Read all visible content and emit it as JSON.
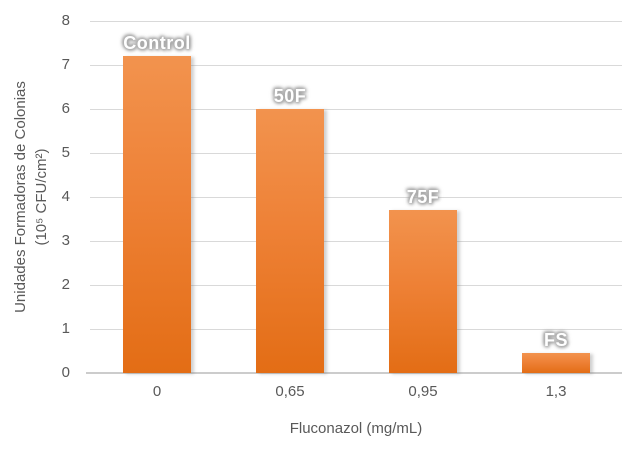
{
  "chart_data": {
    "type": "bar",
    "title": "",
    "categories": [
      "0",
      "0,65",
      "0,95",
      "1,3"
    ],
    "values": [
      7.2,
      6,
      3.7,
      0.45
    ],
    "bar_labels": [
      "Control",
      "50F",
      "75F",
      "FS"
    ],
    "xlabel": "Fluconazol (mg/mL)",
    "ylabel_lines": [
      "Unidades Formadoras de Colonias",
      "(10⁵ CFU/cm²)"
    ],
    "ylim": [
      0,
      8
    ],
    "ytick_labels": [
      "0",
      "1",
      "2",
      "3",
      "4",
      "5",
      "6",
      "7",
      "8"
    ],
    "grid": "horizontal",
    "legend": "none",
    "colors": {
      "bar_top": "#F2934E",
      "bar_bottom": "#E36D15",
      "gridline": "#D9D9D9",
      "axis_line": "#CCCCCC",
      "axis_text": "#595959",
      "bar_label_text": "#FFFFFF",
      "bar_label_glow": "#9E9E9E",
      "background": "#FFFFFF"
    }
  }
}
